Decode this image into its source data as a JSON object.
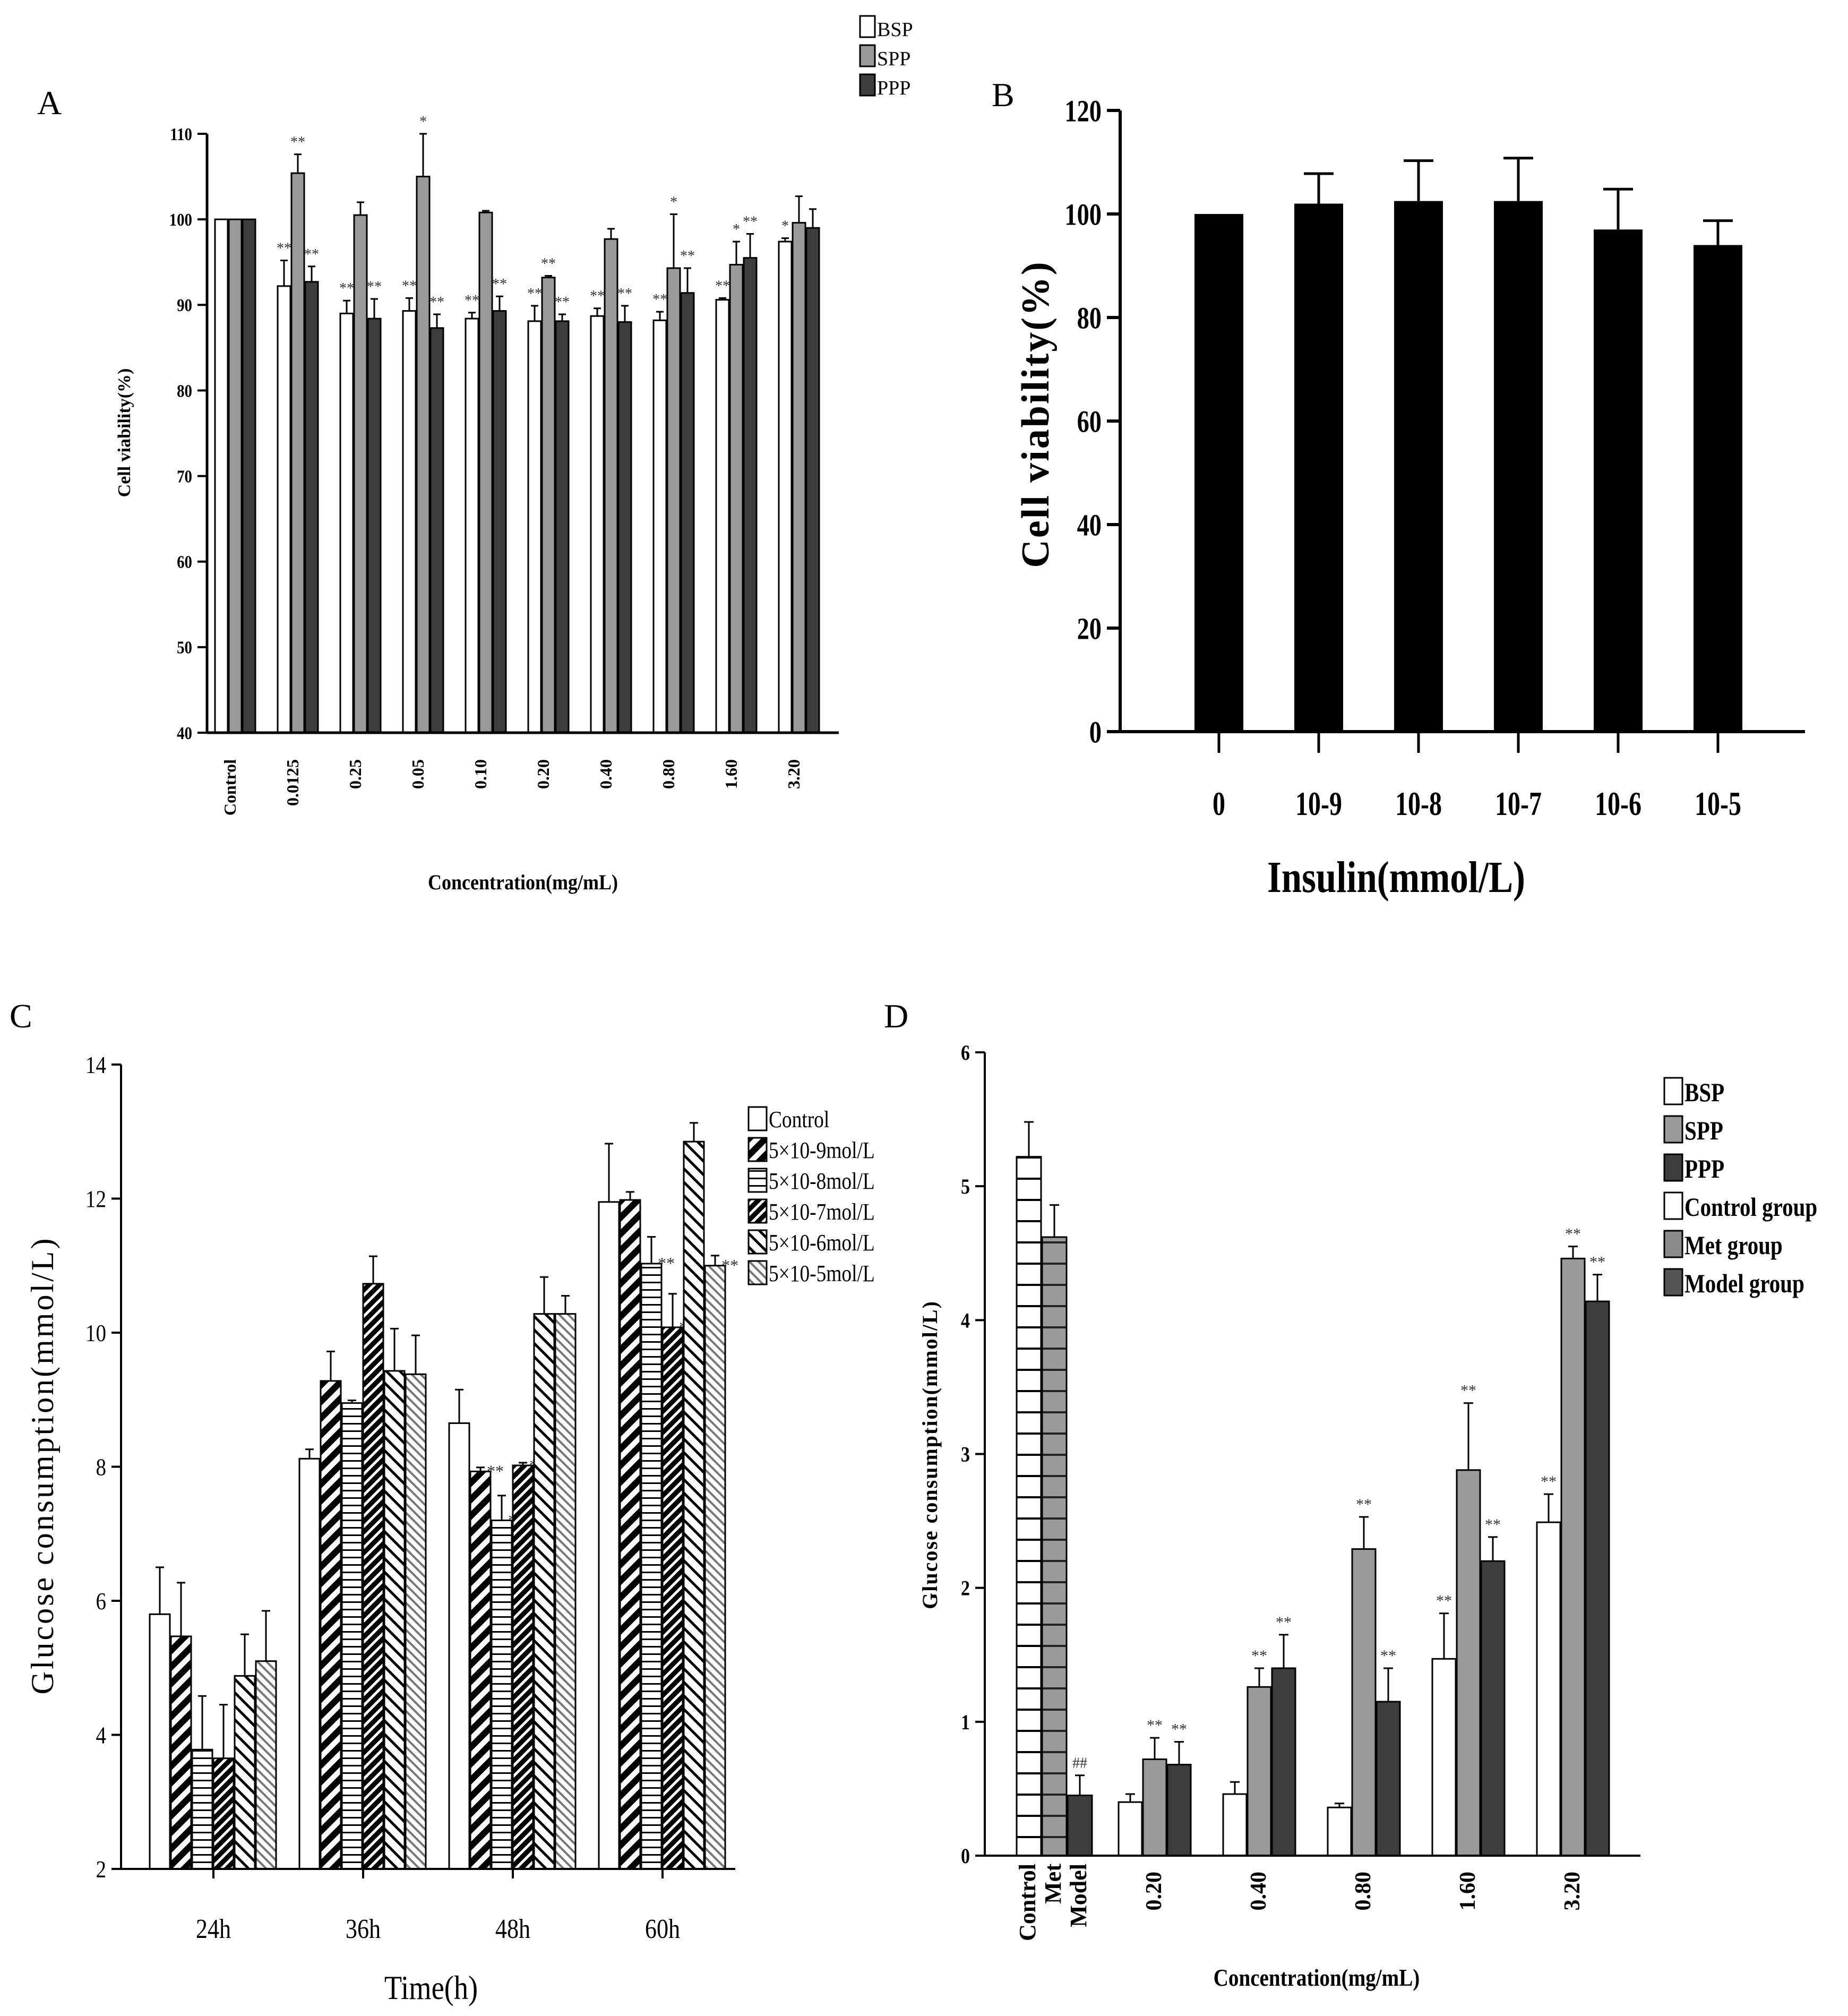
{
  "figure": {
    "panels": [
      "A",
      "B",
      "C",
      "D"
    ]
  },
  "colors": {
    "bsp": "#ffffff",
    "spp": "#9a9a9a",
    "ppp": "#3c3c3c",
    "insulin": "#000000",
    "axis": "#000000"
  },
  "chart_data": [
    {
      "id": "A",
      "type": "bar",
      "title": "",
      "xlabel": "Concentration(mg/mL)",
      "ylabel": "Cell viability(%)",
      "ylim": [
        40,
        110
      ],
      "yticks": [
        40,
        50,
        60,
        70,
        80,
        90,
        100,
        110
      ],
      "categories": [
        "Control",
        "0.0125",
        "0.25",
        "0.05",
        "0.10",
        "0.20",
        "0.40",
        "0.80",
        "1.60",
        "3.20"
      ],
      "legend": [
        "BSP",
        "SPP",
        "PPP"
      ],
      "series": [
        {
          "name": "BSP",
          "values": [
            100,
            92.2,
            89.0,
            89.3,
            88.4,
            88.1,
            88.7,
            88.2,
            90.6,
            97.4
          ],
          "errors": [
            0,
            3.0,
            1.5,
            1.5,
            0.7,
            1.8,
            0.9,
            1.0,
            0.2,
            0.4
          ],
          "sig": [
            "",
            "**",
            "**",
            "**",
            "**",
            "**",
            "**",
            "**",
            "**",
            "*"
          ]
        },
        {
          "name": "SPP",
          "values": [
            100,
            105.4,
            100.5,
            105.0,
            100.8,
            93.2,
            97.7,
            94.3,
            94.7,
            99.6
          ],
          "errors": [
            0,
            2.2,
            1.5,
            5.0,
            0.2,
            0.2,
            1.2,
            6.3,
            2.7,
            3.1
          ],
          "sig": [
            "",
            "**",
            "",
            "*",
            "",
            "**",
            "",
            "*",
            "*",
            ""
          ]
        },
        {
          "name": "PPP",
          "values": [
            100,
            92.7,
            88.4,
            87.3,
            89.3,
            88.1,
            88.0,
            91.4,
            95.5,
            99.0
          ],
          "errors": [
            0,
            1.8,
            2.3,
            1.6,
            1.7,
            0.8,
            1.9,
            2.9,
            2.8,
            2.2
          ],
          "sig": [
            "",
            "**",
            "**",
            "**",
            "**",
            "**",
            "**",
            "**",
            "**",
            ""
          ]
        }
      ]
    },
    {
      "id": "B",
      "type": "bar",
      "title": "",
      "xlabel": "Insulin(mmol/L)",
      "ylabel": "Cell viability(%)",
      "ylim": [
        0,
        120
      ],
      "yticks": [
        0,
        20,
        40,
        60,
        80,
        100,
        120
      ],
      "categories": [
        "0",
        "10-9",
        "10-8",
        "10-7",
        "10-6",
        "10-5"
      ],
      "series": [
        {
          "name": "Insulin",
          "values": [
            100,
            102,
            102.5,
            102.5,
            97,
            94
          ],
          "errors": [
            0,
            5.8,
            7.8,
            8.3,
            7.8,
            4.7
          ]
        }
      ]
    },
    {
      "id": "C",
      "type": "bar",
      "title": "",
      "xlabel": "Time(h)",
      "ylabel": "Glucose consumption(mmol/L)",
      "ylim": [
        2,
        14
      ],
      "yticks": [
        2,
        4,
        6,
        8,
        10,
        12,
        14
      ],
      "categories": [
        "24h",
        "36h",
        "48h",
        "60h"
      ],
      "legend": [
        "Control",
        "5×10-9mol/L",
        "5×10-8mol/L",
        "5×10-7mol/L",
        "5×10-6mol/L",
        "5×10-5mol/L"
      ],
      "series": [
        {
          "name": "Control",
          "values": [
            5.8,
            8.12,
            8.65,
            11.95
          ],
          "errors": [
            0.7,
            0.14,
            0.5,
            0.87
          ],
          "sig": [
            "",
            "",
            "",
            ""
          ]
        },
        {
          "name": "5×10-9mol/L",
          "values": [
            5.47,
            9.28,
            7.93,
            11.98
          ],
          "errors": [
            0.8,
            0.44,
            0.06,
            0.12
          ],
          "sig": [
            "",
            "",
            "**",
            ""
          ]
        },
        {
          "name": "5×10-8mol/L",
          "values": [
            3.78,
            8.95,
            7.2,
            11.03
          ],
          "errors": [
            0.8,
            0.04,
            0.37,
            0.4
          ],
          "sig": [
            "",
            "",
            "**",
            "**"
          ]
        },
        {
          "name": "5×10-7mol/L",
          "values": [
            3.65,
            10.73,
            8.02,
            10.08
          ],
          "errors": [
            0.8,
            0.41,
            0.04,
            0.5
          ],
          "sig": [
            "",
            "",
            "**",
            "**"
          ]
        },
        {
          "name": "5×10-6mol/L",
          "values": [
            4.88,
            9.43,
            10.28,
            12.85
          ],
          "errors": [
            0.62,
            0.63,
            0.55,
            0.28
          ],
          "sig": [
            "",
            "",
            "",
            ""
          ]
        },
        {
          "name": "5×10-5mol/L",
          "values": [
            5.1,
            9.38,
            10.28,
            11.0
          ],
          "errors": [
            0.75,
            0.58,
            0.27,
            0.15
          ],
          "sig": [
            "",
            "",
            "",
            "**"
          ]
        }
      ]
    },
    {
      "id": "D",
      "type": "bar",
      "title": "",
      "xlabel": "Concentration(mg/mL)",
      "ylabel": "Glucose consumption(mmol/L)",
      "ylim": [
        0,
        6
      ],
      "yticks": [
        0,
        1,
        2,
        3,
        4,
        5,
        6
      ],
      "legend": [
        "BSP",
        "SPP",
        "PPP",
        "Control group",
        "Met group",
        "Model group"
      ],
      "control_groups": {
        "categories": [
          "Control",
          "Met",
          "Model"
        ],
        "values": [
          5.22,
          4.62,
          0.45
        ],
        "errors": [
          0.26,
          0.24,
          0.15
        ],
        "sig": [
          "",
          "",
          "##"
        ]
      },
      "categories": [
        "0.20",
        "0.40",
        "0.80",
        "1.60",
        "3.20"
      ],
      "series": [
        {
          "name": "BSP",
          "values": [
            0.4,
            0.46,
            0.36,
            1.47,
            2.49
          ],
          "errors": [
            0.06,
            0.09,
            0.03,
            0.34,
            0.21
          ],
          "sig": [
            "",
            "",
            "",
            "**",
            "**"
          ]
        },
        {
          "name": "SPP",
          "values": [
            0.72,
            1.26,
            2.29,
            2.88,
            4.46
          ],
          "errors": [
            0.16,
            0.14,
            0.24,
            0.5,
            0.09
          ],
          "sig": [
            "**",
            "**",
            "**",
            "**",
            "**"
          ]
        },
        {
          "name": "PPP",
          "values": [
            0.68,
            1.4,
            1.15,
            2.2,
            4.14
          ],
          "errors": [
            0.17,
            0.25,
            0.25,
            0.18,
            0.2
          ],
          "sig": [
            "**",
            "**",
            "**",
            "**",
            "**"
          ]
        }
      ]
    }
  ]
}
